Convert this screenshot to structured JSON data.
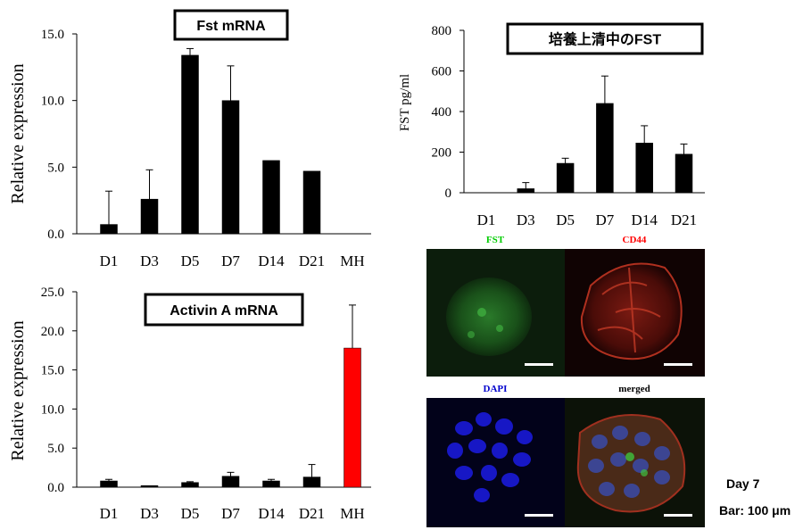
{
  "chart_data": [
    {
      "type": "bar",
      "title": "Fst mRNA",
      "ylabel": "Relative expression",
      "categories": [
        "D1",
        "D3",
        "D5",
        "D7",
        "D14",
        "D21",
        "MH"
      ],
      "ylim": [
        0,
        15
      ],
      "yticks": [
        "0.0",
        "5.0",
        "10.0",
        "15.0"
      ],
      "ytick_values": [
        0,
        5,
        10,
        15
      ],
      "series": [
        {
          "values": [
            0.7,
            2.6,
            13.4,
            10.0,
            5.5,
            4.7,
            0
          ],
          "errors": [
            2.5,
            2.2,
            0.5,
            2.6,
            0,
            0,
            0
          ],
          "colors": [
            "#000000",
            "#000000",
            "#000000",
            "#000000",
            "#000000",
            "#000000",
            "#000000"
          ]
        }
      ]
    },
    {
      "type": "bar",
      "title": "Activin A mRNA",
      "ylabel": "Relative expression",
      "categories": [
        "D1",
        "D3",
        "D5",
        "D7",
        "D14",
        "D21",
        "MH"
      ],
      "ylim": [
        0,
        25
      ],
      "yticks": [
        "0.0",
        "5.0",
        "10.0",
        "15.0",
        "20.0",
        "25.0"
      ],
      "ytick_values": [
        0,
        5,
        10,
        15,
        20,
        25
      ],
      "series": [
        {
          "values": [
            0.8,
            0.2,
            0.6,
            1.4,
            0.8,
            1.3,
            17.8
          ],
          "errors": [
            0.2,
            0,
            0.1,
            0.5,
            0.2,
            1.6,
            5.5
          ],
          "colors": [
            "#000000",
            "#000000",
            "#000000",
            "#000000",
            "#000000",
            "#000000",
            "#ff0000"
          ]
        }
      ]
    },
    {
      "type": "bar",
      "title": "培養上清中のFST",
      "ylabel": "FST pg/ml",
      "categories": [
        "D1",
        "D3",
        "D5",
        "D7",
        "D14",
        "D21"
      ],
      "ylim": [
        0,
        800
      ],
      "yticks": [
        "0",
        "200",
        "400",
        "600",
        "800"
      ],
      "ytick_values": [
        0,
        200,
        400,
        600,
        800
      ],
      "series": [
        {
          "values": [
            0,
            20,
            145,
            440,
            245,
            190
          ],
          "errors": [
            0,
            30,
            25,
            135,
            85,
            50
          ],
          "colors": [
            "#000000",
            "#000000",
            "#000000",
            "#000000",
            "#000000",
            "#000000"
          ]
        }
      ]
    }
  ],
  "micrographs": {
    "labels": {
      "fst": "FST",
      "cd44": "CD44",
      "dapi": "DAPI",
      "merged": "merged"
    },
    "label_colors": {
      "fst": "#00cc00",
      "cd44": "#ff0000",
      "dapi": "#0000cc",
      "merged": "#000000"
    }
  },
  "annotations": {
    "day": "Day 7",
    "bar": "Bar: 100 μm"
  }
}
